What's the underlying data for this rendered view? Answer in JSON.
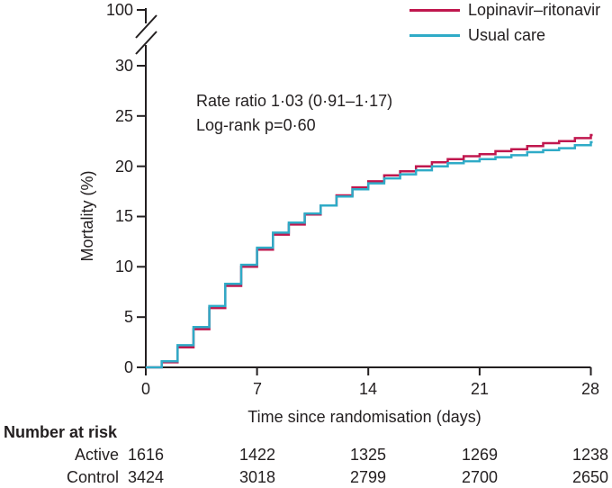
{
  "colors": {
    "lopinavir": "#c0174e",
    "usual_care": "#2fabc7",
    "axis_and_text": "#231f20",
    "background": "#ffffff"
  },
  "chart_data": {
    "type": "line",
    "subtype": "kaplan-meier-step",
    "title": "",
    "xlabel": "Time since randomisation (days)",
    "ylabel": "Mortality (%)",
    "xlim": [
      0,
      28
    ],
    "ylim": [
      0,
      30
    ],
    "x_ticks": [
      0,
      7,
      14,
      21,
      28
    ],
    "y_ticks": [
      0,
      5,
      10,
      15,
      20,
      25,
      30
    ],
    "y_axis_break_top_label": "100",
    "grid": "off",
    "legend_position": "top-right",
    "annotation": [
      "Rate ratio 1·03 (0·91–1·17)",
      "Log-rank p=0·60"
    ],
    "x": [
      0,
      1,
      2,
      3,
      4,
      5,
      6,
      7,
      8,
      9,
      10,
      11,
      12,
      13,
      14,
      15,
      16,
      17,
      18,
      19,
      20,
      21,
      22,
      23,
      24,
      25,
      26,
      27,
      28
    ],
    "series": [
      {
        "name": "Lopinavir–ritonavir",
        "color": "#c0174e",
        "values": [
          0,
          0.5,
          2.0,
          3.8,
          5.9,
          8.1,
          10.0,
          11.7,
          13.2,
          14.2,
          15.2,
          16.1,
          17.1,
          17.9,
          18.5,
          19.1,
          19.5,
          20.0,
          20.4,
          20.7,
          21.0,
          21.2,
          21.5,
          21.7,
          22.0,
          22.3,
          22.5,
          22.8,
          23.1
        ]
      },
      {
        "name": "Usual care",
        "color": "#2fabc7",
        "values": [
          0,
          0.6,
          2.2,
          4.0,
          6.1,
          8.3,
          10.2,
          11.9,
          13.4,
          14.4,
          15.3,
          16.1,
          17.0,
          17.7,
          18.3,
          18.8,
          19.2,
          19.6,
          20.0,
          20.3,
          20.5,
          20.7,
          20.9,
          21.1,
          21.4,
          21.6,
          21.8,
          22.1,
          22.4
        ]
      }
    ]
  },
  "risk_table": {
    "title": "Number at risk",
    "rows": [
      {
        "label": "Active",
        "values": [
          "1616",
          "1422",
          "1325",
          "1269",
          "1238"
        ]
      },
      {
        "label": "Control",
        "values": [
          "3424",
          "3018",
          "2799",
          "2700",
          "2650"
        ]
      }
    ]
  }
}
